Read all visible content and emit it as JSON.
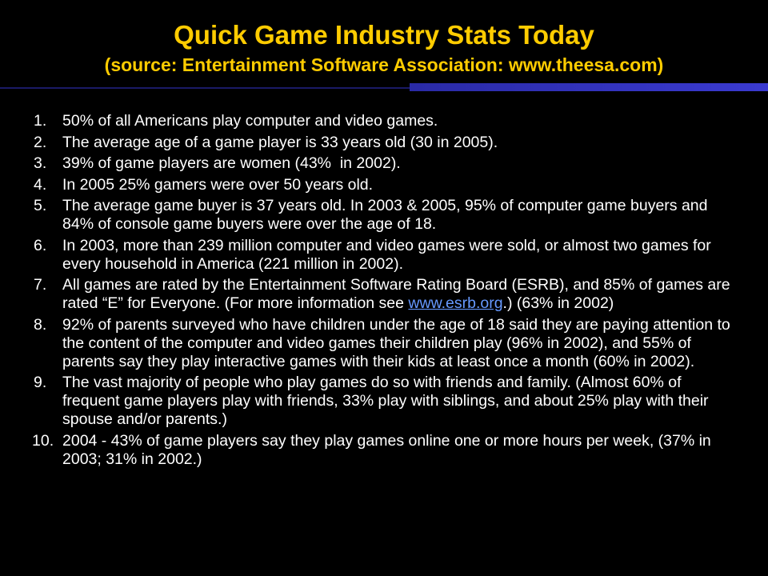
{
  "title": {
    "line1": "Quick Game Industry Stats Today",
    "line2": "(source: Entertainment Software Association: www.theesa.com)"
  },
  "items": [
    {
      "num": "1.",
      "text": "50% of all Americans play computer and video games."
    },
    {
      "num": "2.",
      "text": "The average age of a game player is 33 years old (30 in 2005)."
    },
    {
      "num": "3.",
      "text": "39% of game players are women (43%  in 2002)."
    },
    {
      "num": "4.",
      "text": "In 2005 25% gamers were over 50 years old."
    },
    {
      "num": "5.",
      "text": "The average game buyer is 37 years old. In 2003 & 2005, 95% of computer game buyers and 84% of console game buyers were over the age of 18."
    },
    {
      "num": "6.",
      "text": "In 2003, more than 239 million computer and video games were sold, or almost two games for every household in America (221 million in 2002)."
    },
    {
      "num": "7.",
      "text_before": "All games are rated by the Entertainment Software Rating Board (ESRB), and 85% of games are rated “E” for Everyone. (For more information see ",
      "link": "www.esrb.org",
      "text_after": ".) (63% in 2002)"
    },
    {
      "num": "8.",
      "text": "92% of parents surveyed who have children under the age of 18 said they are paying attention to the content of the computer and video games their children play (96% in 2002), and 55% of parents say they play interactive games with their kids at least once a month (60% in 2002)."
    },
    {
      "num": "9.",
      "text": "The vast majority of people who play games do so with friends and family. (Almost 60% of frequent game players play with friends, 33% play with siblings, and about 25% play with their spouse and/or parents.)"
    },
    {
      "num": "10.",
      "text": "2004 - 43% of game players say they play games online one or more hours per week, (37% in 2003; 31% in 2002.)"
    }
  ],
  "colors": {
    "background": "#000000",
    "title": "#FFCC00",
    "body_text": "#FFFFFF",
    "link": "#6699FF",
    "accent_bar": "#3333BB"
  }
}
